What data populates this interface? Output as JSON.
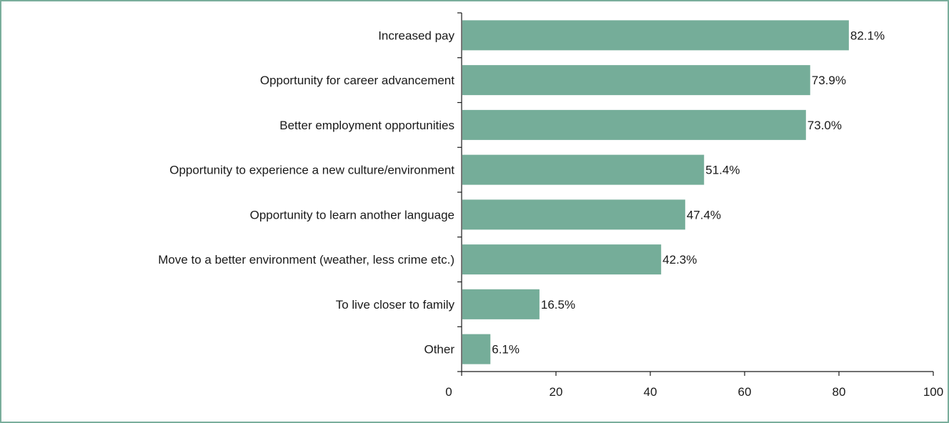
{
  "chart_data": {
    "type": "bar",
    "orientation": "horizontal",
    "categories": [
      "Increased pay",
      "Opportunity for career advancement",
      "Better employment opportunities",
      "Opportunity to experience a new culture/environment",
      "Opportunity to learn another language",
      "Move to a better environment (weather, less crime etc.)",
      "To live closer to family",
      "Other"
    ],
    "values": [
      82.1,
      73.9,
      73.0,
      51.4,
      47.4,
      42.3,
      16.5,
      6.1
    ],
    "value_labels": [
      "82.1%",
      "73.9%",
      "73.0%",
      "51.4%",
      "47.4%",
      "42.3%",
      "16.5%",
      "6.1%"
    ],
    "xlim": [
      0,
      100
    ],
    "xticks": [
      0,
      20,
      40,
      60,
      80,
      100
    ],
    "xtick_labels": [
      "0",
      "20",
      "40",
      "60",
      "80",
      "100"
    ],
    "title": "",
    "xlabel": "",
    "ylabel": "",
    "grid": false,
    "legend": "none",
    "colors": {
      "bar": "#75ad99",
      "frame": "#7aae9c",
      "axis": "#1a1a1a"
    }
  }
}
